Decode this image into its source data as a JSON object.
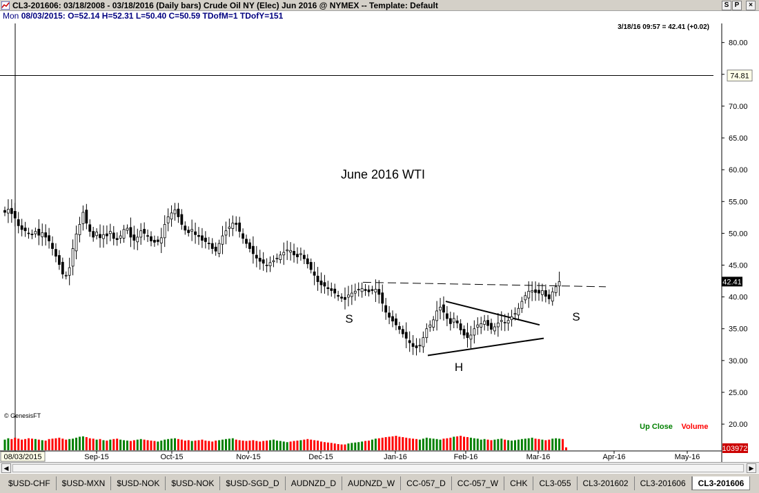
{
  "window": {
    "title": "CL3-201606:  03/18/2008 - 03/18/2016  (Daily bars)   Crude Oil NY (Elec) Jun 2016 @ NYMEX  --  Template: Default",
    "buttons": [
      "S",
      "P",
      "×"
    ]
  },
  "ohlc": {
    "day": "Mon",
    "text": "08/03/2015:  O=52.14  H=52.31  L=50.40  C=50.59  TDofM=1  TDofY=151"
  },
  "colors": {
    "candle_up": "#000000",
    "candle_down": "#000000",
    "volume_up": "#008000",
    "volume_down": "#ff0000",
    "price_label_bg": "#000000",
    "up_close": "#008000",
    "volume_label": "#ff0000"
  },
  "chart_data": {
    "type": "candlestick",
    "title": "June 2016 WTI",
    "last_quote": "3/18/16 09:57 = 42.41 (+0.02)",
    "copyright": "© GenesisFT",
    "ylim": [
      16,
      83
    ],
    "y_ticks": [
      "80.00",
      "75.00",
      "70.00",
      "65.00",
      "60.00",
      "55.00",
      "50.00",
      "45.00",
      "40.00",
      "35.00",
      "30.00",
      "25.00",
      "20.00"
    ],
    "x_ticks": [
      "Sep-15",
      "Oct-15",
      "Nov-15",
      "Dec-15",
      "Jan-16",
      "Feb-16",
      "Mar-16",
      "Apr-16",
      "May-16"
    ],
    "cursor_date_label": "08/03/2015",
    "crosshair_price": 74.81,
    "crosshair_price_label": "74.81",
    "last_price_label": "42.41",
    "volume_label": "103972",
    "legend": {
      "up_close": "Up Close",
      "volume": "Volume"
    },
    "annotations": [
      "S",
      "H",
      "S"
    ],
    "closes": [
      53.3,
      53.8,
      53.1,
      52.4,
      51.2,
      50.6,
      50.4,
      50.0,
      49.8,
      50.3,
      49.7,
      50.1,
      49.4,
      48.8,
      47.6,
      46.4,
      45.1,
      43.6,
      43.4,
      44.6,
      47.6,
      49.9,
      51.4,
      53.3,
      51.6,
      50.3,
      49.4,
      50.2,
      49.3,
      49.8,
      49.6,
      50.3,
      49.2,
      49.0,
      49.6,
      50.6,
      50.8,
      49.4,
      48.9,
      49.4,
      50.4,
      50.0,
      49.6,
      48.8,
      48.6,
      48.7,
      49.3,
      51.4,
      52.6,
      53.2,
      53.7,
      52.6,
      51.4,
      50.5,
      50.1,
      50.6,
      49.8,
      49.5,
      48.9,
      48.7,
      48.4,
      47.6,
      47.2,
      48.4,
      49.6,
      50.4,
      51.0,
      51.6,
      51.4,
      50.3,
      49.2,
      48.4,
      47.6,
      46.8,
      46.1,
      45.6,
      45.3,
      45.0,
      45.4,
      45.7,
      46.1,
      46.6,
      47.0,
      47.4,
      47.3,
      46.6,
      46.3,
      46.8,
      46.0,
      45.2,
      44.3,
      43.4,
      42.4,
      41.9,
      41.7,
      41.3,
      41.0,
      40.6,
      40.1,
      39.8,
      39.6,
      40.3,
      40.6,
      40.9,
      41.2,
      41.3,
      41.0,
      40.8,
      41.0,
      41.2,
      40.4,
      39.0,
      37.6,
      36.8,
      36.2,
      35.6,
      34.9,
      34.2,
      33.5,
      32.8,
      32.2,
      32.0,
      32.4,
      33.6,
      35.0,
      35.6,
      36.4,
      37.8,
      38.4,
      37.6,
      36.6,
      35.8,
      36.6,
      35.9,
      34.8,
      34.0,
      33.6,
      34.0,
      35.0,
      35.6,
      35.8,
      36.2,
      35.5,
      34.9,
      35.3,
      35.9,
      36.3,
      36.0,
      36.3,
      36.9,
      37.4,
      38.2,
      39.3,
      40.2,
      40.9,
      41.0,
      40.7,
      40.6,
      41.0,
      40.1,
      39.7,
      40.8,
      41.6,
      42.41
    ],
    "volumes": [
      0.55,
      0.62,
      0.58,
      0.65,
      0.6,
      0.55,
      0.58,
      0.62,
      0.6,
      0.58,
      0.55,
      0.52,
      0.5,
      0.58,
      0.6,
      0.62,
      0.65,
      0.6,
      0.55,
      0.58,
      0.6,
      0.65,
      0.7,
      0.72,
      0.68,
      0.62,
      0.6,
      0.55,
      0.58,
      0.52,
      0.5,
      0.55,
      0.58,
      0.6,
      0.55,
      0.52,
      0.5,
      0.48,
      0.52,
      0.55,
      0.58,
      0.55,
      0.52,
      0.5,
      0.48,
      0.45,
      0.5,
      0.55,
      0.58,
      0.6,
      0.62,
      0.58,
      0.55,
      0.5,
      0.52,
      0.48,
      0.5,
      0.52,
      0.55,
      0.5,
      0.48,
      0.45,
      0.5,
      0.52,
      0.55,
      0.58,
      0.6,
      0.62,
      0.55,
      0.52,
      0.5,
      0.48,
      0.5,
      0.52,
      0.48,
      0.45,
      0.48,
      0.5,
      0.52,
      0.55,
      0.5,
      0.48,
      0.45,
      0.42,
      0.45,
      0.48,
      0.5,
      0.52,
      0.55,
      0.58,
      0.55,
      0.52,
      0.5,
      0.45,
      0.42,
      0.4,
      0.38,
      0.35,
      0.32,
      0.3,
      0.3,
      0.35,
      0.38,
      0.4,
      0.42,
      0.45,
      0.48,
      0.5,
      0.55,
      0.6,
      0.62,
      0.65,
      0.68,
      0.7,
      0.72,
      0.75,
      0.7,
      0.68,
      0.65,
      0.62,
      0.6,
      0.58,
      0.55,
      0.6,
      0.65,
      0.62,
      0.6,
      0.58,
      0.55,
      0.6,
      0.62,
      0.65,
      0.7,
      0.72,
      0.75,
      0.7,
      0.68,
      0.65,
      0.62,
      0.6,
      0.55,
      0.58,
      0.55,
      0.52,
      0.55,
      0.58,
      0.6,
      0.55,
      0.52,
      0.5,
      0.52,
      0.55,
      0.58,
      0.6,
      0.62,
      0.65,
      0.6,
      0.58,
      0.55,
      0.52,
      0.55,
      0.6,
      0.62,
      0.6,
      0.58,
      0.15
    ]
  },
  "tabs": [
    "$USD-CHF",
    "$USD-MXN",
    "$USD-NOK",
    "$USD-NOK",
    "$USD-SGD_D",
    "AUDNZD_D",
    "AUDNZD_W",
    "CC-057_D",
    "CC-057_W",
    "CHK",
    "CL3-055",
    "CL3-201602",
    "CL3-201606",
    "CL3-201606"
  ],
  "active_tab_index": 13
}
